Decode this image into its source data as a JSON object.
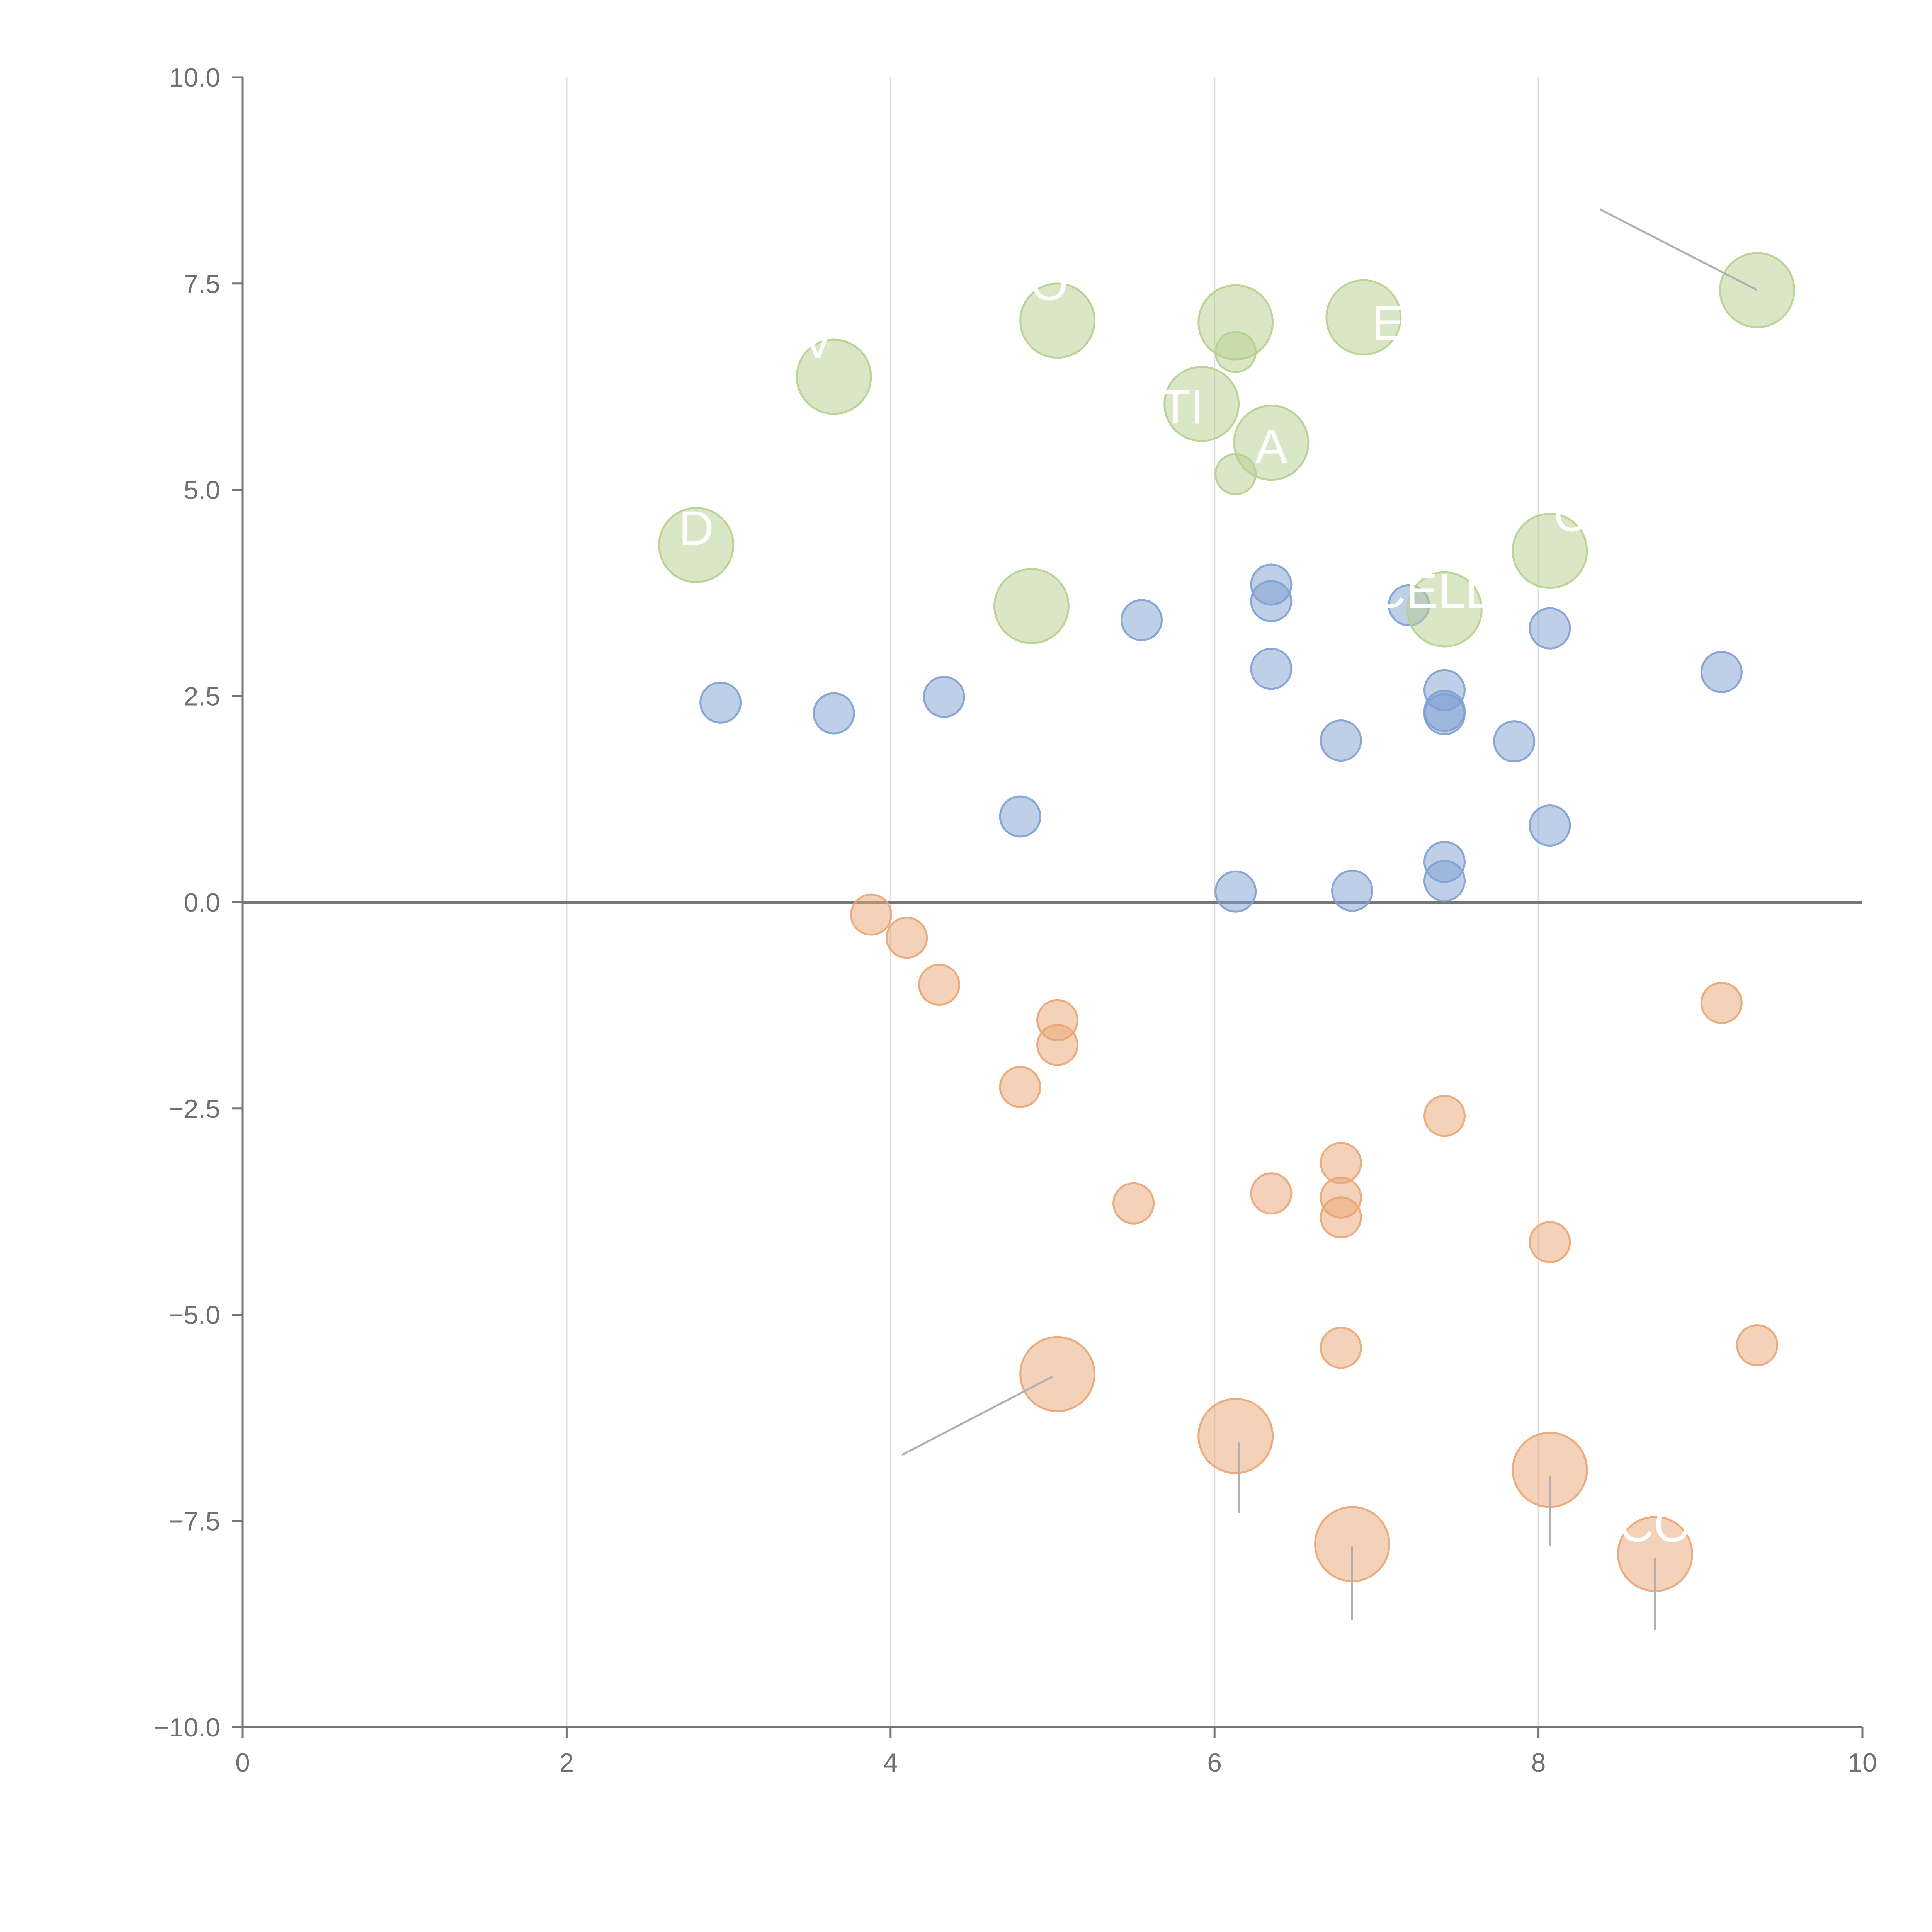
{
  "chart_data": {
    "type": "scatter",
    "title": "",
    "xlabel": "",
    "ylabel": "",
    "xlim": [
      0,
      10
    ],
    "ylim": [
      -10,
      10
    ],
    "x_ticks": [
      0,
      2,
      4,
      6,
      8,
      10
    ],
    "x_tick_labels": [
      "0",
      "2",
      "4",
      "6",
      "8",
      "10"
    ],
    "y_ticks": [
      10,
      7.5,
      5,
      2.5,
      0,
      -2.5,
      -5,
      -7.5,
      -10
    ],
    "y_tick_labels": [
      "10.0",
      "7.5",
      "5.0",
      "2.5",
      "0.0",
      "−2.5",
      "−5.0",
      "−7.5",
      "−10.0"
    ],
    "grid": "vertical",
    "reference_line_y": 0,
    "colors": {
      "blue": "#7f9fd1",
      "orange": "#e9a574",
      "green": "#b6d08e",
      "axis": "#757575",
      "grid": "#dcdcdc",
      "zero_line": "#777777",
      "leader": "#b0b0b0",
      "label": "#ffffff"
    },
    "series": [
      {
        "name": "blue",
        "color_key": "blue",
        "size": "small",
        "points": [
          {
            "x": 2.95,
            "y": 2.42
          },
          {
            "x": 3.65,
            "y": 2.29
          },
          {
            "x": 4.33,
            "y": 2.49
          },
          {
            "x": 4.8,
            "y": 1.04
          },
          {
            "x": 5.55,
            "y": 3.42
          },
          {
            "x": 6.13,
            "y": 0.13
          },
          {
            "x": 6.35,
            "y": 3.85
          },
          {
            "x": 6.35,
            "y": 3.65
          },
          {
            "x": 6.35,
            "y": 2.83
          },
          {
            "x": 6.78,
            "y": 1.96
          },
          {
            "x": 6.85,
            "y": 0.14
          },
          {
            "x": 7.2,
            "y": 3.6
          },
          {
            "x": 7.42,
            "y": 2.57
          },
          {
            "x": 7.42,
            "y": 2.32
          },
          {
            "x": 7.42,
            "y": 2.28
          },
          {
            "x": 7.42,
            "y": 0.49
          },
          {
            "x": 7.42,
            "y": 0.26
          },
          {
            "x": 7.85,
            "y": 1.95
          },
          {
            "x": 8.07,
            "y": 3.32
          },
          {
            "x": 8.07,
            "y": 0.93
          },
          {
            "x": 9.13,
            "y": 2.79
          }
        ]
      },
      {
        "name": "orange",
        "color_key": "orange",
        "size": "small",
        "points": [
          {
            "x": 3.88,
            "y": -0.15
          },
          {
            "x": 4.1,
            "y": -0.43
          },
          {
            "x": 4.3,
            "y": -1.0
          },
          {
            "x": 4.8,
            "y": -2.24
          },
          {
            "x": 5.03,
            "y": -1.43
          },
          {
            "x": 5.03,
            "y": -1.73
          },
          {
            "x": 5.5,
            "y": -3.65
          },
          {
            "x": 6.35,
            "y": -3.53
          },
          {
            "x": 6.78,
            "y": -3.16
          },
          {
            "x": 6.78,
            "y": -3.58
          },
          {
            "x": 6.78,
            "y": -3.82
          },
          {
            "x": 6.78,
            "y": -5.4
          },
          {
            "x": 7.42,
            "y": -2.59
          },
          {
            "x": 8.07,
            "y": -4.12
          },
          {
            "x": 9.13,
            "y": -1.22
          },
          {
            "x": 9.35,
            "y": -5.37
          }
        ]
      },
      {
        "name": "orange-large",
        "color_key": "orange",
        "size": "large",
        "points": [
          {
            "x": 5.03,
            "y": -5.72
          },
          {
            "x": 6.13,
            "y": -6.47
          },
          {
            "x": 6.85,
            "y": -7.78
          },
          {
            "x": 8.07,
            "y": -6.88
          },
          {
            "x": 8.72,
            "y": -7.9
          }
        ]
      },
      {
        "name": "green",
        "color_key": "green",
        "size": "large",
        "points": [
          {
            "x": 2.8,
            "y": 4.33
          },
          {
            "x": 3.65,
            "y": 6.37
          },
          {
            "x": 4.87,
            "y": 3.59
          },
          {
            "x": 5.03,
            "y": 7.05
          },
          {
            "x": 5.92,
            "y": 6.04
          },
          {
            "x": 6.13,
            "y": 7.03
          },
          {
            "x": 6.35,
            "y": 5.57
          },
          {
            "x": 6.92,
            "y": 7.09
          },
          {
            "x": 7.42,
            "y": 3.55
          },
          {
            "x": 8.07,
            "y": 4.26
          },
          {
            "x": 9.35,
            "y": 7.42
          }
        ]
      },
      {
        "name": "green-small",
        "color_key": "green",
        "size": "small",
        "points": [
          {
            "x": 6.13,
            "y": 6.67
          },
          {
            "x": 6.13,
            "y": 5.19
          }
        ]
      }
    ],
    "leader_lines": [
      {
        "from": {
          "x": 9.35,
          "y": 7.42
        },
        "to": {
          "x": 8.38,
          "y": 8.4
        }
      },
      {
        "from": {
          "x": 5.0,
          "y": -5.75
        },
        "to": {
          "x": 4.07,
          "y": -6.7
        }
      },
      {
        "from": {
          "x": 6.15,
          "y": -6.55
        },
        "to": {
          "x": 6.15,
          "y": -7.4
        }
      },
      {
        "from": {
          "x": 8.07,
          "y": -6.95
        },
        "to": {
          "x": 8.07,
          "y": -7.8
        }
      },
      {
        "from": {
          "x": 6.85,
          "y": -7.8
        },
        "to": {
          "x": 6.85,
          "y": -8.7
        }
      },
      {
        "from": {
          "x": 8.72,
          "y": -7.95
        },
        "to": {
          "x": 8.72,
          "y": -8.82
        }
      }
    ],
    "annotations": [
      {
        "text": "D",
        "x": 2.8,
        "y": 4.33
      },
      {
        "text": "V",
        "x": 3.55,
        "y": 6.6
      },
      {
        "text": "O",
        "x": 4.98,
        "y": 7.3
      },
      {
        "text": "TI",
        "x": 5.8,
        "y": 5.8
      },
      {
        "text": "A",
        "x": 6.35,
        "y": 5.32
      },
      {
        "text": "E",
        "x": 7.07,
        "y": 6.82
      },
      {
        "text": "CELL",
        "x": 7.34,
        "y": 3.57
      },
      {
        "text": "C",
        "x": 8.2,
        "y": 4.5
      },
      {
        "text": "CO",
        "x": 8.72,
        "y": -7.75
      }
    ]
  }
}
